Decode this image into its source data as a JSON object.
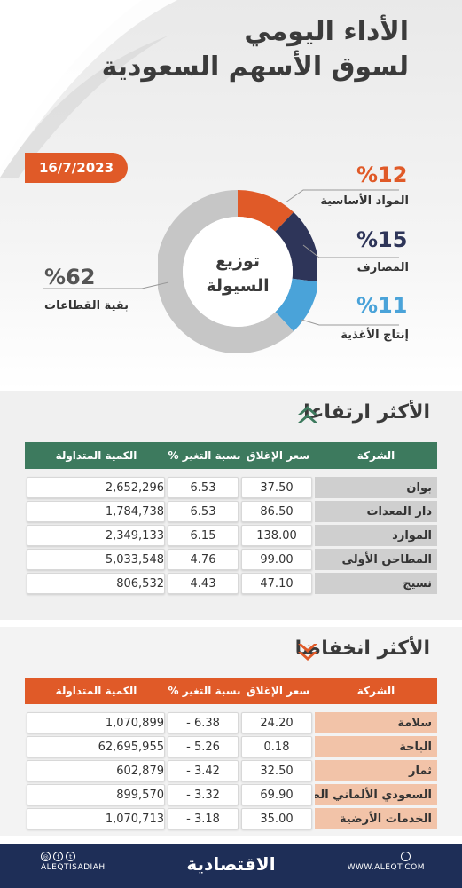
{
  "header": {
    "title_line1": "الأداء اليومي",
    "title_line2": "لسوق الأسهم السعودية",
    "date": "16/7/2023"
  },
  "liquidity": {
    "center_line1": "توزيع",
    "center_line2": "السيولة",
    "segments": [
      {
        "label": "المواد الأساسية",
        "percent_text": "%12",
        "value": 12,
        "color": "#e05a28"
      },
      {
        "label": "المصارف",
        "percent_text": "%15",
        "value": 15,
        "color": "#2e3559"
      },
      {
        "label": "إنتاج الأغذية",
        "percent_text": "%11",
        "value": 11,
        "color": "#4aa3d9"
      },
      {
        "label": "بقية القطاعات",
        "percent_text": "%62",
        "value": 62,
        "color": "#c6c6c6"
      }
    ]
  },
  "gainers": {
    "title": "الأكثر ارتفاعا",
    "header_color": "#3d7a5e",
    "columns": [
      "الشركة",
      "سعر الإغلاق",
      "نسبة التغير %",
      "الكمية المتداولة"
    ],
    "rows": [
      {
        "name": "بوان",
        "close": "37.50",
        "change": "6.53",
        "volume": "2,652,296"
      },
      {
        "name": "دار المعدات",
        "close": "86.50",
        "change": "6.53",
        "volume": "1,784,738"
      },
      {
        "name": "الموارد",
        "close": "138.00",
        "change": "6.15",
        "volume": "2,349,133"
      },
      {
        "name": "المطاحن الأولى",
        "close": "99.00",
        "change": "4.76",
        "volume": "5,033,548"
      },
      {
        "name": "نسيج",
        "close": "47.10",
        "change": "4.43",
        "volume": "806,532"
      }
    ]
  },
  "losers": {
    "title": "الأكثر انخفاضا",
    "header_color": "#e05a28",
    "columns": [
      "الشركة",
      "سعر الإغلاق",
      "نسبة التغير %",
      "الكمية المتداولة"
    ],
    "rows": [
      {
        "name": "سلامة",
        "close": "24.20",
        "change": "6.38 -",
        "volume": "1,070,899"
      },
      {
        "name": "الباحة",
        "close": "0.18",
        "change": "5.26 -",
        "volume": "62,695,955"
      },
      {
        "name": "ثمار",
        "close": "32.50",
        "change": "3.42 -",
        "volume": "602,879"
      },
      {
        "name": "السعودي الألماني الصحية",
        "close": "69.90",
        "change": "3.32 -",
        "volume": "899,570"
      },
      {
        "name": "الخدمات الأرضية",
        "close": "35.00",
        "change": "3.18 -",
        "volume": "1,070,713"
      }
    ]
  },
  "footer": {
    "handle": "ALEQTISADIAH",
    "logo": "الاقتصادية",
    "website": "WWW.ALEQT.COM"
  }
}
